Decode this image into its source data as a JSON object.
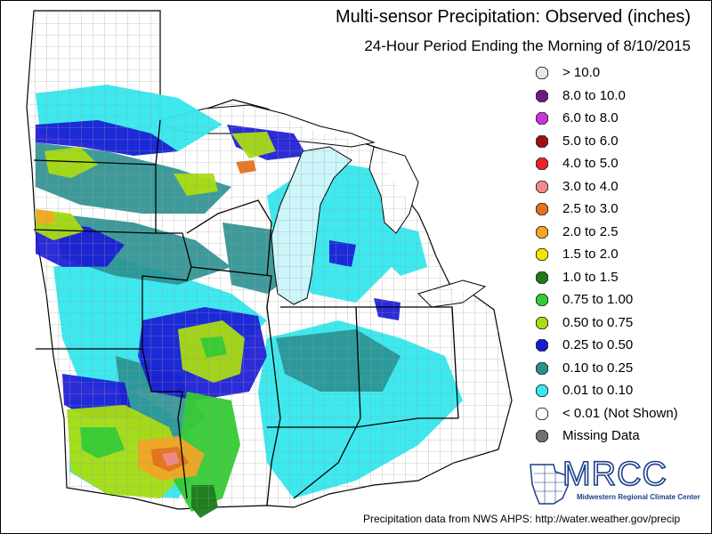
{
  "title": {
    "line1": "Multi-sensor Precipitation:  Observed (inches)",
    "line2": "24-Hour Period Ending the Morning of 8/10/2015"
  },
  "legend": [
    {
      "label": "> 10.0",
      "color": "#e8e8e8"
    },
    {
      "label": "8.0 to 10.0",
      "color": "#6a1b8a"
    },
    {
      "label": "6.0 to 8.0",
      "color": "#cc33dd"
    },
    {
      "label": "5.0 to 6.0",
      "color": "#a01010"
    },
    {
      "label": "4.0 to 5.0",
      "color": "#ee2222"
    },
    {
      "label": "3.0 to 4.0",
      "color": "#f08a8a"
    },
    {
      "label": "2.5 to 3.0",
      "color": "#e8701a"
    },
    {
      "label": "2.0 to 2.5",
      "color": "#f5a623"
    },
    {
      "label": "1.5 to 2.0",
      "color": "#f2e600"
    },
    {
      "label": "1.0 to 1.5",
      "color": "#1c7a1c"
    },
    {
      "label": "0.75 to 1.00",
      "color": "#33cc33"
    },
    {
      "label": "0.50 to 0.75",
      "color": "#aadd11"
    },
    {
      "label": "0.25 to 0.50",
      "color": "#1a1ad6"
    },
    {
      "label": "0.10 to 0.25",
      "color": "#2a9090"
    },
    {
      "label": "0.01 to 0.10",
      "color": "#33e8ee"
    },
    {
      "label": "< 0.01 (Not Shown)",
      "color": "#ffffff"
    },
    {
      "label": "Missing Data",
      "color": "#707070"
    }
  ],
  "logo": {
    "main": "MRCC",
    "sub": "Midwestern Regional Climate Center"
  },
  "credit": "Precipitation data from NWS AHPS: http://water.weather.gov/precip"
}
